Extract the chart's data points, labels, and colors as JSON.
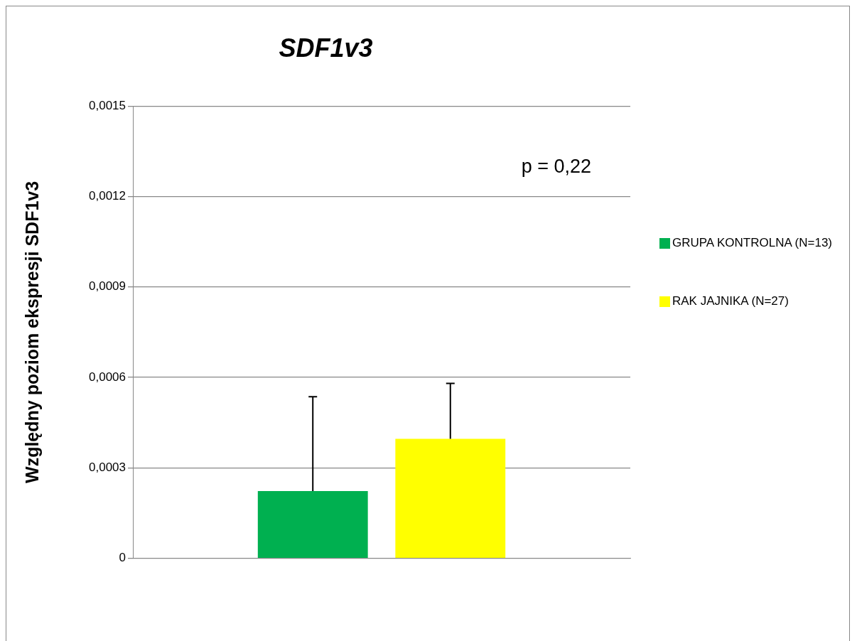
{
  "chart_data": {
    "type": "bar",
    "title": "SDF1v3",
    "ylabel": "Względny poziom ekspresji SDF1v3",
    "categories": [
      null
    ],
    "series": [
      {
        "name": "GRUPA KONTROLNA (N=13)",
        "color": "#00b050",
        "values": [
          0.000223
        ],
        "errors": [
          [
            0.000223,
            0.000536
          ]
        ]
      },
      {
        "name": "RAK JAJNIKA (N=27)",
        "color": "#ffff00",
        "values": [
          0.000396
        ],
        "errors": [
          [
            0.000396,
            0.00058
          ]
        ]
      }
    ],
    "ylim": [
      0,
      0.0015
    ],
    "yticks": [
      {
        "value": 0,
        "label": "0"
      },
      {
        "value": 0.0003,
        "label": "0,0003"
      },
      {
        "value": 0.0006,
        "label": "0,0006"
      },
      {
        "value": 0.0009,
        "label": "0,0009"
      },
      {
        "value": 0.0012,
        "label": "0,0012"
      },
      {
        "value": 0.0015,
        "label": "0,0015"
      }
    ],
    "grid": "y",
    "legend": "right",
    "annotations": [
      "p = 0,22"
    ]
  }
}
